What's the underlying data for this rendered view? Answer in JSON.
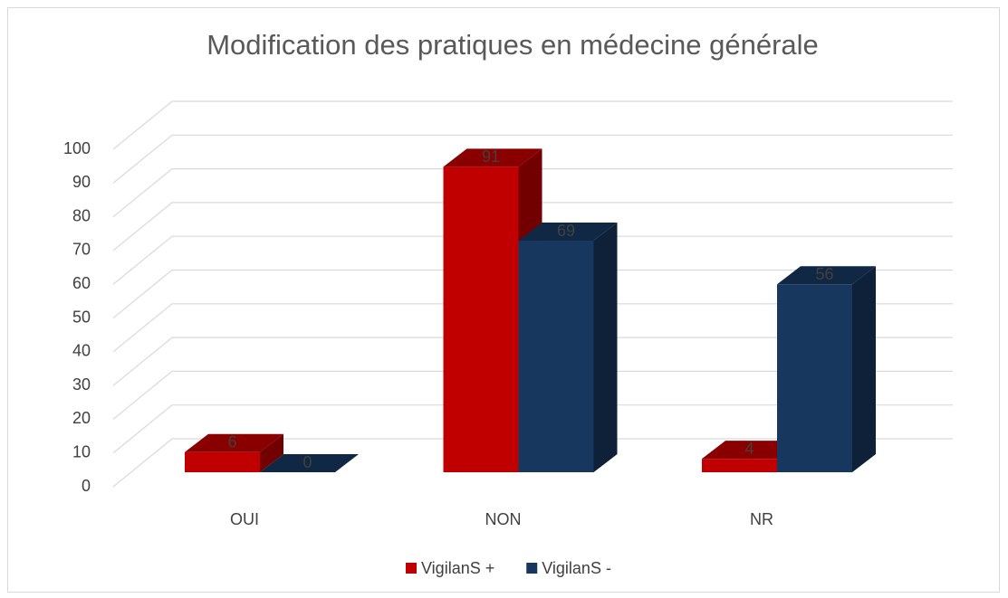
{
  "chart_data": {
    "type": "bar3d",
    "title": "Modification des pratiques en médecine générale",
    "categories": [
      "OUI",
      "NON",
      "NR"
    ],
    "series": [
      {
        "name": "VigilanS +",
        "color": "#c00000",
        "values": [
          6,
          91,
          4
        ]
      },
      {
        "name": "VigilanS -",
        "color": "#17375e",
        "values": [
          0,
          69,
          56
        ]
      }
    ],
    "ylim": [
      0,
      100
    ],
    "yticks": [
      0,
      10,
      20,
      30,
      40,
      50,
      60,
      70,
      80,
      90,
      100
    ],
    "grid": true,
    "legend": "bottom"
  }
}
